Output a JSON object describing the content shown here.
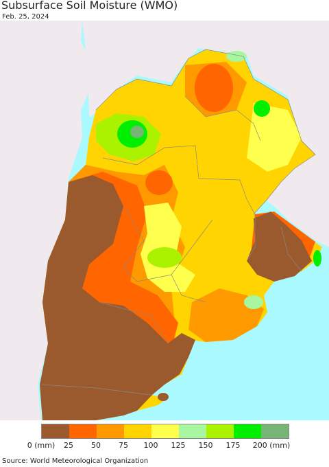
{
  "header": {
    "title": "Subsurface Soil Moisture (WMO)",
    "date": "Feb. 25, 2024"
  },
  "legend": {
    "ticks": [
      "0 (mm)",
      "25",
      "50",
      "75",
      "100",
      "125",
      "150",
      "175",
      "200 (mm)"
    ],
    "colors": [
      "#9a5a2e",
      "#ff6600",
      "#ff9900",
      "#ffd400",
      "#ffff4d",
      "#a8f7a0",
      "#aaf200",
      "#00ee00",
      "#77b577"
    ]
  },
  "footer": {
    "source": "Source: World Meteorological Organization"
  },
  "map_colors": {
    "ocean": "#aaf9ff",
    "non_region_land": "#f0eaef",
    "border": "#888888"
  }
}
